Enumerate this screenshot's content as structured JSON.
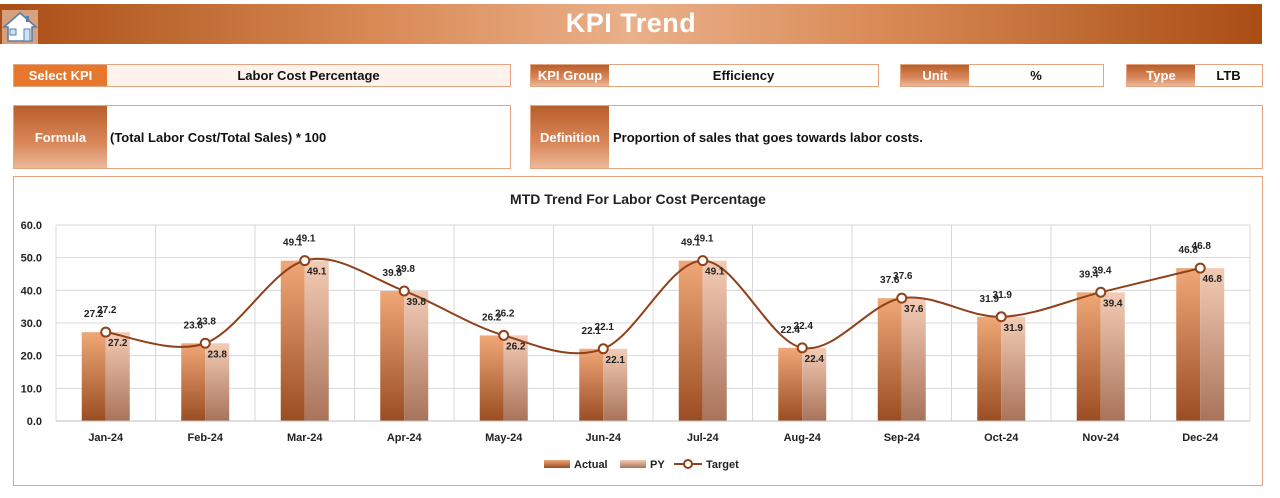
{
  "header": {
    "title": "KPI Trend",
    "home_icon": "home-icon"
  },
  "filters": {
    "select_kpi": {
      "label": "Select KPI",
      "value": "Labor Cost Percentage"
    },
    "kpi_group": {
      "label": "KPI Group",
      "value": "Efficiency"
    },
    "unit": {
      "label": "Unit",
      "value": "%"
    },
    "type": {
      "label": "Type",
      "value": "LTB"
    }
  },
  "formula": {
    "label": "Formula",
    "value": "(Total Labor Cost/Total Sales) * 100"
  },
  "definition": {
    "label": "Definition",
    "value": "Proportion of sales that goes towards labor costs."
  },
  "colors": {
    "accent": "#e8772e",
    "actual": "#e0895a",
    "py": "#e6b39a",
    "target": "#9c4a1f",
    "border": "#e3a581"
  },
  "chart_data": {
    "type": "bar",
    "title": "MTD Trend For Labor Cost Percentage",
    "categories": [
      "Jan-24",
      "Feb-24",
      "Mar-24",
      "Apr-24",
      "May-24",
      "Jun-24",
      "Jul-24",
      "Aug-24",
      "Sep-24",
      "Oct-24",
      "Nov-24",
      "Dec-24"
    ],
    "ylim": [
      0,
      60
    ],
    "yticks": [
      "0.0",
      "10.0",
      "20.0",
      "30.0",
      "40.0",
      "50.0",
      "60.0"
    ],
    "grid": true,
    "legend_position": "bottom",
    "series": [
      {
        "name": "Actual",
        "type": "bar",
        "values": [
          27.2,
          23.8,
          49.1,
          39.8,
          26.2,
          22.1,
          49.1,
          22.4,
          37.6,
          31.9,
          39.4,
          46.8
        ]
      },
      {
        "name": "PY",
        "type": "bar",
        "values": [
          27.2,
          23.8,
          49.1,
          39.8,
          26.2,
          22.1,
          49.1,
          22.4,
          37.6,
          31.9,
          39.4,
          46.8
        ]
      },
      {
        "name": "Target",
        "type": "line",
        "values": [
          27.2,
          23.8,
          49.1,
          39.8,
          26.2,
          22.1,
          49.1,
          22.4,
          37.6,
          31.9,
          39.4,
          46.8
        ]
      }
    ]
  }
}
